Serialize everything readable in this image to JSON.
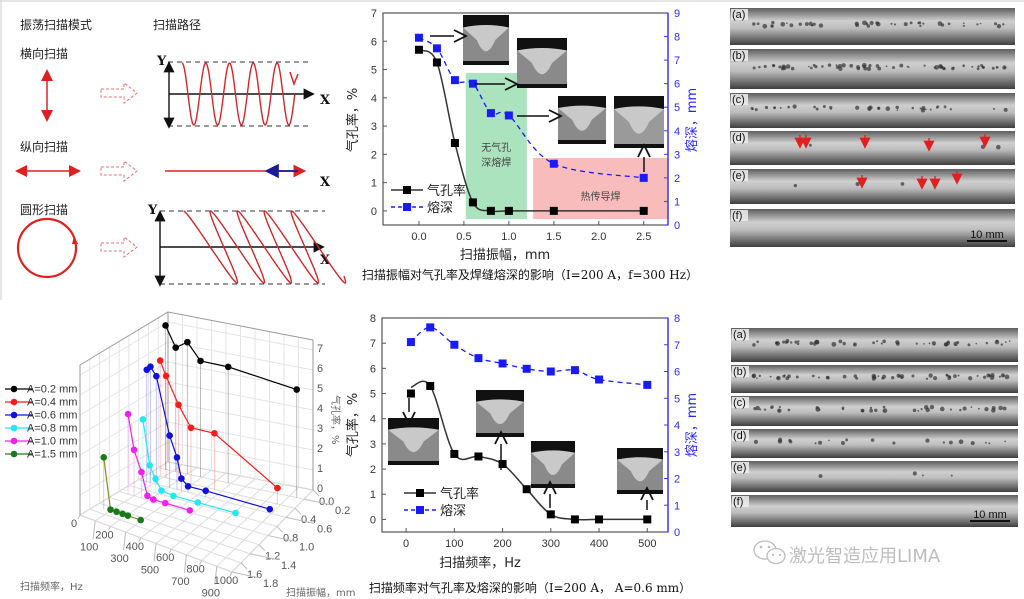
{
  "scan_modes": {
    "col_mode_title": "振荡扫描模式",
    "col_path_title": "扫描路径",
    "transverse": "横向扫描",
    "longitudinal": "纵向扫描",
    "circular": "圆形扫描",
    "axis_x": "X",
    "axis_y": "Y",
    "colors": {
      "path": "#e02020",
      "reverse": "#1a1a9a"
    }
  },
  "chart_data": [
    {
      "id": "amplitude",
      "type": "line",
      "title": "扫描振幅对气孔率及焊缝熔深的影响（I=200 A，f=300 Hz）",
      "xlabel": "扫描振幅，mm",
      "ylabel": "气孔率，%",
      "y2label": "熔深，mm",
      "xlim": [
        -0.4,
        2.77
      ],
      "ylim": [
        -0.5,
        7
      ],
      "y2lim": [
        0,
        9
      ],
      "xticks": [
        "0.0",
        "0.5",
        "1.0",
        "1.5",
        "2.0",
        "2.5"
      ],
      "yticks": [
        "0",
        "1",
        "2",
        "3",
        "4",
        "5",
        "6",
        "7"
      ],
      "y2ticks": [
        "0",
        "1",
        "2",
        "3",
        "4",
        "5",
        "6",
        "7",
        "8",
        "9"
      ],
      "series": [
        {
          "name": "气孔率",
          "axis": "left",
          "color": "#000000",
          "style": "solid-fit",
          "x": [
            0,
            0.2,
            0.4,
            0.6,
            0.8,
            1.0,
            1.5,
            2.5
          ],
          "y": [
            5.7,
            5.25,
            2.4,
            0.3,
            0,
            0,
            0,
            0
          ]
        },
        {
          "name": "熔深",
          "axis": "right",
          "color": "#1a1aff",
          "style": "dashed",
          "x": [
            0,
            0.2,
            0.4,
            0.6,
            0.8,
            1.0,
            1.5,
            2.5
          ],
          "y": [
            7.95,
            7.5,
            6.15,
            6.0,
            4.75,
            4.65,
            2.6,
            2.0
          ]
        }
      ],
      "regions": [
        {
          "label_lines": [
            "无气孔",
            "深熔焊"
          ],
          "x": [
            0.52,
            1.2
          ],
          "color": "#8fd9a8"
        },
        {
          "label_lines": [
            "热传导焊"
          ],
          "x": [
            1.27,
            2.77
          ],
          "color": "#f6a6a6"
        }
      ],
      "legend": "bottom-left"
    },
    {
      "id": "frequency",
      "type": "line",
      "title": "扫描频率对气孔率及熔深的影响（I=200 A， A=0.6 mm）",
      "xlabel": "扫描频率，Hz",
      "ylabel": "气孔率，%",
      "y2label": "熔深，mm",
      "xlim": [
        -50,
        543
      ],
      "ylim": [
        -0.5,
        8
      ],
      "y2lim": [
        0,
        8
      ],
      "xticks": [
        "0",
        "100",
        "200",
        "300",
        "400",
        "500"
      ],
      "yticks": [
        "0",
        "1",
        "2",
        "3",
        "4",
        "5",
        "6",
        "7",
        "8"
      ],
      "y2ticks": [
        "0",
        "1",
        "2",
        "3",
        "4",
        "5",
        "6",
        "7",
        "8"
      ],
      "series": [
        {
          "name": "气孔率",
          "axis": "left",
          "color": "#000000",
          "style": "solid-fit",
          "x": [
            10,
            50,
            100,
            150,
            200,
            250,
            300,
            350,
            400,
            500
          ],
          "y": [
            5.0,
            5.3,
            2.6,
            2.5,
            2.2,
            1.2,
            0.2,
            0,
            0,
            0
          ]
        },
        {
          "name": "熔深",
          "axis": "right",
          "color": "#1a1aff",
          "style": "dashed",
          "x": [
            10,
            50,
            100,
            150,
            200,
            250,
            300,
            350,
            400,
            500
          ],
          "y": [
            7.1,
            7.65,
            7.0,
            6.5,
            6.3,
            6.1,
            6.0,
            6.05,
            5.7,
            5.5
          ]
        }
      ],
      "legend": "bottom-left"
    },
    {
      "id": "3d",
      "type": "line",
      "title": "",
      "xlabel": "扫描频率，Hz",
      "ylabel": "扫描振幅，mm",
      "zlabel": "气孔率，%",
      "xlim": [
        0,
        1000
      ],
      "ylim": [
        0,
        1.8
      ],
      "zlim": [
        0,
        7.5
      ],
      "xticks": [
        "0",
        "100",
        "200",
        "300",
        "400",
        "500",
        "600",
        "700",
        "800",
        "900",
        "1000"
      ],
      "yticks": [
        "0.0",
        "0.2",
        "0.4",
        "0.6",
        "0.8",
        "1.0",
        "1.2",
        "1.4",
        "1.6",
        "1.8"
      ],
      "zticks": [
        "0",
        "1",
        "2",
        "3",
        "4",
        "5",
        "6",
        "7"
      ],
      "series": [
        {
          "name": "A=0.2 mm",
          "amp": 0.2,
          "color": "#000000",
          "f": [
            50,
            120,
            200,
            290,
            480,
            950
          ],
          "z": [
            7.2,
            6.2,
            6.6,
            5.8,
            5.8,
            5.4
          ]
        },
        {
          "name": "A=0.4 mm",
          "amp": 0.4,
          "color": "#ff1a1a",
          "f": [
            80,
            120,
            205,
            290,
            450,
            880
          ],
          "z": [
            5.8,
            5.1,
            3.8,
            2.8,
            2.8,
            0.8
          ]
        },
        {
          "name": "A=0.6 mm",
          "amp": 0.6,
          "color": "#1010e0",
          "f": [
            55,
            80,
            120,
            210,
            260,
            290,
            335,
            455,
            890
          ],
          "z": [
            5.6,
            5.8,
            5.4,
            2.6,
            1.6,
            0.6,
            0.3,
            0.3,
            0.2
          ]
        },
        {
          "name": "A=0.8 mm",
          "amp": 0.8,
          "color": "#22e8f0",
          "f": [
            95,
            140,
            180,
            220,
            300,
            465,
            720
          ],
          "z": [
            3.5,
            1.3,
            0.7,
            0.2,
            0.1,
            0.1,
            0.1
          ]
        },
        {
          "name": "A=1.0 mm",
          "amp": 1.0,
          "color": "#f020f0",
          "f": [
            60,
            100,
            150,
            190,
            230,
            310,
            475
          ],
          "z": [
            4.0,
            2.3,
            1.3,
            0.2,
            0.1,
            0.1,
            0.1
          ]
        },
        {
          "name": "A=1.5 mm",
          "amp": 1.5,
          "color": "#1a7a1a",
          "f": [
            60,
            105,
            145,
            185,
            220,
            305
          ],
          "z": [
            2.6,
            0.1,
            0.1,
            0.1,
            0.1,
            0.1
          ]
        }
      ],
      "legend": "left"
    }
  ],
  "radiographs_top": {
    "labels": [
      "(a)",
      "(b)",
      "(c)",
      "(d)",
      "(e)",
      "(f)"
    ],
    "scale_bar": "10 mm"
  },
  "radiographs_bottom": {
    "labels": [
      "(a)",
      "(b)",
      "(c)",
      "(d)",
      "(e)",
      "(f)"
    ],
    "scale_bar": "10 mm"
  },
  "watermark": {
    "text": "激光智造应用LIMA"
  }
}
